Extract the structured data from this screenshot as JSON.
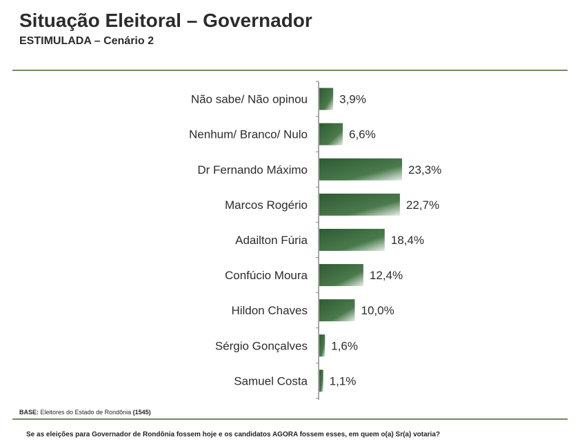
{
  "header": {
    "title": "Situação Eleitoral – Governador",
    "subtitle": "ESTIMULADA – Cenário 2"
  },
  "chart_data": {
    "type": "bar",
    "orientation": "horizontal",
    "categories": [
      "Não sabe/ Não opinou",
      "Nenhum/ Branco/ Nulo",
      "Dr Fernando Máximo",
      "Marcos Rogério",
      "Adailton Fúria",
      "Confúcio Moura",
      "Hildon Chaves",
      "Sérgio Gonçalves",
      "Samuel Costa"
    ],
    "values": [
      3.9,
      6.6,
      23.3,
      22.7,
      18.4,
      12.4,
      10.0,
      1.6,
      1.1
    ],
    "data_labels": [
      "3,9%",
      "6,6%",
      "23,3%",
      "22,7%",
      "18,4%",
      "12,4%",
      "10,0%",
      "1,6%",
      "1,1%"
    ],
    "bar_color": "#3d6b40",
    "grid": false
  },
  "footer": {
    "base_label": "BASE:",
    "base_text": " Eleitores do Estado de Rondônia ",
    "base_count": "(1545)",
    "question": "Se as eleições para Governador de Rondônia fossem hoje e os candidatos AGORA fossem esses, em quem o(a) Sr(a) votaria?"
  }
}
